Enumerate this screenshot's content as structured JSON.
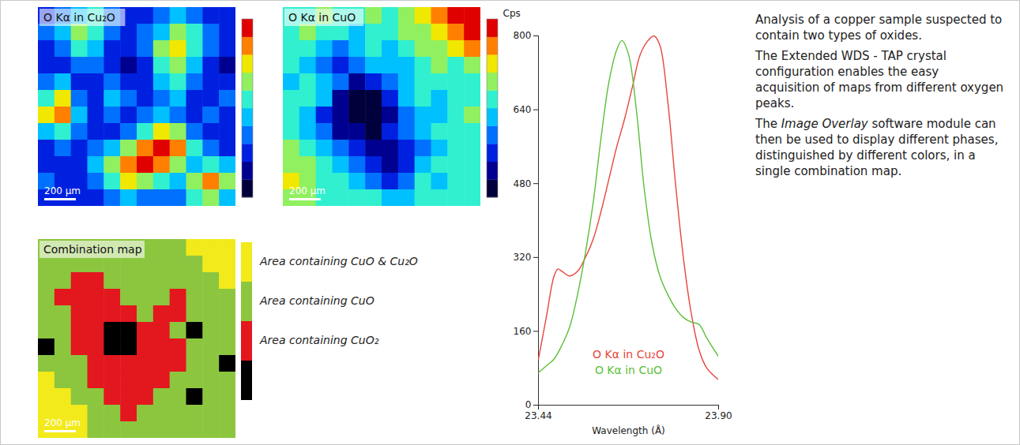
{
  "maps": [
    {
      "title": "O Kα in Cu₂O",
      "type": "heatmap",
      "colorbar": true,
      "scale_bar": {
        "label": "200 µm",
        "length_um": 200
      },
      "width_um": 1250,
      "cells": [
        [
          2,
          3,
          4,
          5,
          3,
          2,
          2,
          3,
          4,
          3,
          2,
          2
        ],
        [
          3,
          4,
          6,
          5,
          3,
          2,
          3,
          4,
          6,
          5,
          3,
          2
        ],
        [
          2,
          3,
          5,
          4,
          2,
          2,
          3,
          6,
          7,
          5,
          3,
          2
        ],
        [
          2,
          2,
          3,
          3,
          2,
          1,
          2,
          5,
          6,
          4,
          2,
          1
        ],
        [
          3,
          4,
          2,
          2,
          3,
          2,
          2,
          4,
          5,
          3,
          2,
          2
        ],
        [
          5,
          7,
          3,
          2,
          4,
          3,
          2,
          3,
          4,
          2,
          2,
          3
        ],
        [
          7,
          8,
          4,
          2,
          3,
          2,
          3,
          4,
          3,
          2,
          3,
          2
        ],
        [
          4,
          5,
          3,
          2,
          2,
          3,
          5,
          7,
          6,
          3,
          2,
          2
        ],
        [
          2,
          3,
          2,
          3,
          4,
          6,
          8,
          9,
          8,
          5,
          3,
          2
        ],
        [
          2,
          2,
          2,
          4,
          6,
          8,
          9,
          8,
          6,
          4,
          5,
          4
        ],
        [
          3,
          2,
          2,
          3,
          5,
          7,
          6,
          5,
          4,
          6,
          8,
          6
        ],
        [
          2,
          2,
          2,
          2,
          3,
          4,
          3,
          3,
          3,
          5,
          6,
          4
        ]
      ]
    },
    {
      "title": "O Kα in CuO",
      "type": "heatmap",
      "colorbar": true,
      "scale_bar": {
        "label": "200 µm",
        "length_um": 200
      },
      "width_um": 1250,
      "cells": [
        [
          5,
          5,
          6,
          5,
          5,
          6,
          5,
          6,
          7,
          8,
          9,
          9
        ],
        [
          5,
          6,
          5,
          5,
          4,
          5,
          5,
          6,
          6,
          7,
          8,
          9
        ],
        [
          5,
          5,
          4,
          3,
          4,
          5,
          4,
          5,
          6,
          6,
          7,
          8
        ],
        [
          5,
          4,
          3,
          2,
          3,
          4,
          4,
          4,
          5,
          6,
          5,
          6
        ],
        [
          4,
          5,
          4,
          3,
          1,
          2,
          3,
          4,
          5,
          5,
          5,
          5
        ],
        [
          5,
          5,
          4,
          1,
          0,
          0,
          2,
          4,
          5,
          4,
          5,
          5
        ],
        [
          5,
          4,
          2,
          1,
          0,
          0,
          1,
          3,
          4,
          4,
          5,
          6
        ],
        [
          5,
          4,
          3,
          1,
          1,
          0,
          2,
          3,
          4,
          5,
          5,
          5
        ],
        [
          6,
          5,
          4,
          3,
          2,
          1,
          1,
          2,
          3,
          4,
          5,
          5
        ],
        [
          6,
          6,
          5,
          4,
          3,
          2,
          1,
          2,
          4,
          5,
          5,
          5
        ],
        [
          7,
          6,
          5,
          5,
          4,
          3,
          2,
          3,
          5,
          4,
          5,
          5
        ],
        [
          6,
          6,
          5,
          5,
          5,
          5,
          4,
          4,
          5,
          5,
          5,
          5
        ]
      ]
    },
    {
      "title": "Combination map",
      "type": "category_map",
      "scale_bar": {
        "label": "200 µm",
        "length_um": 200
      },
      "width_um": 1250,
      "classes": [
        {
          "label": "Area containing CuO & Cu₂O",
          "color": "#f2ea1a"
        },
        {
          "label": "Area containing CuO",
          "color": "#8cc63f"
        },
        {
          "label": "Area containing CuO₂",
          "color": "#e3171e"
        },
        {
          "color": "#000000"
        }
      ],
      "cells": [
        [
          1,
          1,
          1,
          1,
          1,
          1,
          1,
          1,
          1,
          0,
          0,
          0
        ],
        [
          1,
          1,
          1,
          1,
          1,
          1,
          1,
          1,
          1,
          1,
          0,
          0
        ],
        [
          1,
          1,
          2,
          2,
          1,
          1,
          1,
          1,
          1,
          1,
          1,
          0
        ],
        [
          1,
          2,
          2,
          2,
          2,
          1,
          1,
          1,
          2,
          1,
          1,
          1
        ],
        [
          1,
          1,
          2,
          2,
          2,
          2,
          1,
          2,
          2,
          1,
          1,
          1
        ],
        [
          1,
          1,
          2,
          2,
          3,
          3,
          2,
          2,
          1,
          3,
          1,
          1
        ],
        [
          3,
          1,
          2,
          2,
          3,
          3,
          2,
          2,
          2,
          1,
          1,
          1
        ],
        [
          1,
          1,
          1,
          2,
          2,
          2,
          2,
          2,
          2,
          1,
          1,
          3
        ],
        [
          0,
          1,
          1,
          2,
          2,
          2,
          2,
          2,
          1,
          1,
          1,
          1
        ],
        [
          0,
          0,
          1,
          1,
          2,
          2,
          2,
          1,
          1,
          3,
          1,
          1
        ],
        [
          0,
          0,
          0,
          1,
          1,
          2,
          1,
          1,
          1,
          1,
          1,
          1
        ],
        [
          0,
          0,
          0,
          1,
          1,
          1,
          1,
          1,
          1,
          1,
          1,
          1
        ]
      ]
    }
  ],
  "colormap": [
    "#00003c",
    "#000090",
    "#0020e0",
    "#0070ff",
    "#00c0ff",
    "#30f0d0",
    "#90f060",
    "#f0e800",
    "#ff8000",
    "#e00000"
  ],
  "chart_data": {
    "type": "line",
    "y_label": "Cps",
    "x_label": "Wavelength (Å)",
    "xlim": [
      23.44,
      23.9
    ],
    "xticks": [
      23.44,
      {
        "value": 23.9,
        "label": "23.90"
      }
    ],
    "ylim": [
      0,
      800
    ],
    "yticks": [
      0,
      160,
      320,
      480,
      640,
      800
    ],
    "grid": false,
    "legend": "bottom",
    "series": [
      {
        "name": "O Kα in Cu₂O",
        "color": "#e8453c",
        "x": [
          23.44,
          23.46,
          23.48,
          23.49,
          23.5,
          23.52,
          23.54,
          23.56,
          23.58,
          23.6,
          23.62,
          23.64,
          23.66,
          23.68,
          23.7,
          23.72,
          23.735,
          23.75,
          23.77,
          23.79,
          23.81,
          23.83,
          23.85,
          23.87,
          23.9
        ],
        "values": [
          100,
          190,
          280,
          295,
          290,
          280,
          290,
          320,
          360,
          420,
          490,
          560,
          620,
          690,
          760,
          790,
          800,
          780,
          660,
          480,
          320,
          200,
          120,
          80,
          55
        ]
      },
      {
        "name": "O Kα in CuO",
        "color": "#5cbf3a",
        "x": [
          23.44,
          23.46,
          23.48,
          23.5,
          23.52,
          23.54,
          23.56,
          23.58,
          23.6,
          23.62,
          23.64,
          23.653,
          23.67,
          23.69,
          23.71,
          23.73,
          23.75,
          23.77,
          23.79,
          23.81,
          23.83,
          23.85,
          23.87,
          23.9
        ],
        "values": [
          70,
          85,
          100,
          130,
          170,
          240,
          330,
          440,
          580,
          700,
          770,
          790,
          760,
          640,
          470,
          350,
          280,
          240,
          210,
          190,
          180,
          175,
          145,
          105
        ]
      }
    ]
  },
  "text": {
    "paragraphs": [
      {
        "text": "Analysis of a copper sample suspected to contain two types of oxides."
      },
      {
        "text": "The Extended WDS - TAP crystal configuration enables the easy acquisition of maps from different oxygen peaks."
      },
      {
        "text": "The Image Overlay software module can then be used to display different phases, distinguished by different colors, in a single combination map.",
        "italic": "Image Overlay"
      }
    ]
  }
}
